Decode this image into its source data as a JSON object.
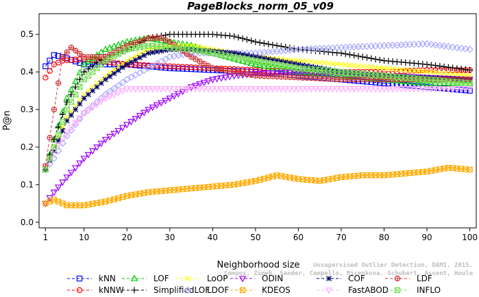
{
  "chart_data": {
    "type": "line",
    "title": "PageBlocks_norm_05_v09",
    "xlabel": "Neighborhood size",
    "ylabel": "P@n",
    "xlim": [
      1,
      100
    ],
    "ylim": [
      0.0,
      0.55
    ],
    "x_ticks": [
      1,
      10,
      20,
      30,
      40,
      50,
      60,
      70,
      80,
      90,
      100
    ],
    "y_ticks": [
      0.0,
      0.1,
      0.2,
      0.3,
      0.4,
      0.5
    ],
    "x_tick_labels": [
      "1",
      "10",
      "20",
      "30",
      "40",
      "50",
      "60",
      "70",
      "80",
      "90",
      "100"
    ],
    "y_tick_labels": [
      "0.0",
      "0.1",
      "0.2",
      "0.3",
      "0.4",
      "0.5"
    ],
    "legend_position": "bottom",
    "citation": "Campos, Zimek, Sander, Campello, Micenkova, Schubert, Assent, Houle",
    "citation_header": "Unsupervised Outlier Detection, DAMI, 2015.",
    "series": [
      {
        "name": "kNN",
        "color": "#0000ff",
        "marker": "square",
        "line": "dash",
        "points": [
          [
            1,
            0.415
          ],
          [
            3,
            0.445
          ],
          [
            5,
            0.44
          ],
          [
            10,
            0.42
          ],
          [
            20,
            0.42
          ],
          [
            30,
            0.41
          ],
          [
            40,
            0.405
          ],
          [
            50,
            0.4
          ],
          [
            60,
            0.39
          ],
          [
            70,
            0.38
          ],
          [
            80,
            0.37
          ],
          [
            90,
            0.36
          ],
          [
            100,
            0.35
          ]
        ]
      },
      {
        "name": "kNNW",
        "color": "#ff0000",
        "marker": "circle",
        "line": "dash",
        "points": [
          [
            1,
            0.385
          ],
          [
            3,
            0.42
          ],
          [
            5,
            0.43
          ],
          [
            10,
            0.435
          ],
          [
            20,
            0.42
          ],
          [
            30,
            0.415
          ],
          [
            40,
            0.41
          ],
          [
            50,
            0.405
          ],
          [
            60,
            0.4
          ],
          [
            70,
            0.4
          ],
          [
            80,
            0.4
          ],
          [
            90,
            0.405
          ],
          [
            100,
            0.405
          ]
        ]
      },
      {
        "name": "LOF",
        "color": "#00cc00",
        "marker": "triangle",
        "line": "dash",
        "points": [
          [
            1,
            0.14
          ],
          [
            3,
            0.22
          ],
          [
            6,
            0.33
          ],
          [
            10,
            0.42
          ],
          [
            15,
            0.46
          ],
          [
            20,
            0.48
          ],
          [
            25,
            0.49
          ],
          [
            30,
            0.48
          ],
          [
            35,
            0.47
          ],
          [
            40,
            0.45
          ],
          [
            50,
            0.42
          ],
          [
            60,
            0.4
          ],
          [
            70,
            0.39
          ],
          [
            80,
            0.38
          ],
          [
            90,
            0.37
          ],
          [
            100,
            0.37
          ]
        ]
      },
      {
        "name": "SimplifiedLOF",
        "color": "#000000",
        "marker": "plus",
        "line": "dash",
        "points": [
          [
            1,
            0.14
          ],
          [
            3,
            0.22
          ],
          [
            6,
            0.32
          ],
          [
            10,
            0.4
          ],
          [
            15,
            0.44
          ],
          [
            20,
            0.46
          ],
          [
            25,
            0.49
          ],
          [
            30,
            0.5
          ],
          [
            35,
            0.5
          ],
          [
            40,
            0.5
          ],
          [
            45,
            0.495
          ],
          [
            50,
            0.48
          ],
          [
            55,
            0.47
          ],
          [
            60,
            0.46
          ],
          [
            70,
            0.45
          ],
          [
            80,
            0.43
          ],
          [
            90,
            0.42
          ],
          [
            100,
            0.405
          ]
        ]
      },
      {
        "name": "LoOP",
        "color": "#ffff00",
        "marker": "x",
        "line": "dash",
        "points": [
          [
            1,
            0.14
          ],
          [
            3,
            0.2
          ],
          [
            6,
            0.28
          ],
          [
            10,
            0.34
          ],
          [
            15,
            0.39
          ],
          [
            20,
            0.43
          ],
          [
            25,
            0.46
          ],
          [
            30,
            0.47
          ],
          [
            35,
            0.47
          ],
          [
            40,
            0.46
          ],
          [
            45,
            0.45
          ],
          [
            50,
            0.44
          ],
          [
            60,
            0.43
          ],
          [
            70,
            0.42
          ],
          [
            80,
            0.41
          ],
          [
            90,
            0.4
          ],
          [
            100,
            0.39
          ]
        ]
      },
      {
        "name": "LDOF",
        "color": "#aaaaff",
        "marker": "diamond",
        "line": "dash",
        "points": [
          [
            1,
            0.14
          ],
          [
            3,
            0.17
          ],
          [
            6,
            0.23
          ],
          [
            10,
            0.29
          ],
          [
            15,
            0.34
          ],
          [
            20,
            0.38
          ],
          [
            25,
            0.41
          ],
          [
            30,
            0.44
          ],
          [
            35,
            0.45
          ],
          [
            40,
            0.45
          ],
          [
            45,
            0.45
          ],
          [
            50,
            0.45
          ],
          [
            60,
            0.46
          ],
          [
            70,
            0.465
          ],
          [
            80,
            0.47
          ],
          [
            90,
            0.475
          ],
          [
            100,
            0.46
          ]
        ]
      },
      {
        "name": "ODIN",
        "color": "#9900ff",
        "marker": "triangle-down",
        "line": "dash",
        "points": [
          [
            1,
            0.05
          ],
          [
            3,
            0.08
          ],
          [
            6,
            0.12
          ],
          [
            10,
            0.17
          ],
          [
            15,
            0.22
          ],
          [
            20,
            0.26
          ],
          [
            25,
            0.3
          ],
          [
            30,
            0.33
          ],
          [
            35,
            0.36
          ],
          [
            40,
            0.38
          ],
          [
            45,
            0.39
          ],
          [
            50,
            0.395
          ],
          [
            60,
            0.4
          ],
          [
            70,
            0.4
          ],
          [
            80,
            0.39
          ],
          [
            90,
            0.385
          ],
          [
            100,
            0.38
          ]
        ]
      },
      {
        "name": "KDEOS",
        "color": "#ffaa00",
        "marker": "square-x",
        "line": "dash",
        "points": [
          [
            1,
            0.05
          ],
          [
            3,
            0.06
          ],
          [
            6,
            0.045
          ],
          [
            10,
            0.045
          ],
          [
            15,
            0.055
          ],
          [
            20,
            0.07
          ],
          [
            25,
            0.08
          ],
          [
            30,
            0.085
          ],
          [
            35,
            0.09
          ],
          [
            40,
            0.095
          ],
          [
            45,
            0.1
          ],
          [
            50,
            0.11
          ],
          [
            55,
            0.125
          ],
          [
            60,
            0.115
          ],
          [
            65,
            0.11
          ],
          [
            70,
            0.12
          ],
          [
            75,
            0.125
          ],
          [
            80,
            0.125
          ],
          [
            85,
            0.13
          ],
          [
            90,
            0.135
          ],
          [
            95,
            0.145
          ],
          [
            100,
            0.14
          ]
        ]
      },
      {
        "name": "COF",
        "color": "#000066",
        "marker": "asterisk",
        "line": "dash",
        "points": [
          [
            1,
            0.14
          ],
          [
            3,
            0.19
          ],
          [
            6,
            0.27
          ],
          [
            10,
            0.33
          ],
          [
            15,
            0.38
          ],
          [
            20,
            0.42
          ],
          [
            25,
            0.45
          ],
          [
            30,
            0.46
          ],
          [
            35,
            0.46
          ],
          [
            40,
            0.455
          ],
          [
            45,
            0.45
          ],
          [
            50,
            0.44
          ],
          [
            60,
            0.42
          ],
          [
            70,
            0.4
          ],
          [
            80,
            0.39
          ],
          [
            90,
            0.385
          ],
          [
            100,
            0.38
          ]
        ]
      },
      {
        "name": "FastABOD",
        "color": "#ffaaff",
        "marker": "triangle-down",
        "line": "dash",
        "points": [
          [
            1,
            0.15
          ],
          [
            3,
            0.19
          ],
          [
            6,
            0.24
          ],
          [
            10,
            0.29
          ],
          [
            15,
            0.33
          ],
          [
            20,
            0.355
          ],
          [
            25,
            0.355
          ],
          [
            30,
            0.355
          ],
          [
            35,
            0.355
          ],
          [
            40,
            0.355
          ],
          [
            50,
            0.355
          ],
          [
            60,
            0.355
          ],
          [
            70,
            0.355
          ],
          [
            80,
            0.355
          ],
          [
            90,
            0.355
          ],
          [
            100,
            0.355
          ]
        ]
      },
      {
        "name": "LDF",
        "color": "#cc3333",
        "marker": "circle-plus",
        "line": "dash",
        "points": [
          [
            1,
            0.15
          ],
          [
            3,
            0.3
          ],
          [
            5,
            0.44
          ],
          [
            7,
            0.465
          ],
          [
            10,
            0.44
          ],
          [
            15,
            0.44
          ],
          [
            20,
            0.47
          ],
          [
            25,
            0.49
          ],
          [
            28,
            0.49
          ],
          [
            30,
            0.48
          ],
          [
            35,
            0.44
          ],
          [
            40,
            0.41
          ],
          [
            50,
            0.39
          ],
          [
            60,
            0.385
          ],
          [
            70,
            0.38
          ],
          [
            80,
            0.38
          ],
          [
            90,
            0.38
          ],
          [
            100,
            0.38
          ]
        ]
      },
      {
        "name": "INFLO",
        "color": "#77dd55",
        "marker": "square-x",
        "line": "dash",
        "points": [
          [
            1,
            0.14
          ],
          [
            3,
            0.2
          ],
          [
            6,
            0.3
          ],
          [
            10,
            0.38
          ],
          [
            15,
            0.43
          ],
          [
            20,
            0.46
          ],
          [
            25,
            0.47
          ],
          [
            30,
            0.465
          ],
          [
            35,
            0.46
          ],
          [
            40,
            0.45
          ],
          [
            50,
            0.43
          ],
          [
            60,
            0.41
          ],
          [
            70,
            0.4
          ],
          [
            80,
            0.39
          ],
          [
            90,
            0.38
          ],
          [
            100,
            0.37
          ]
        ]
      }
    ]
  }
}
